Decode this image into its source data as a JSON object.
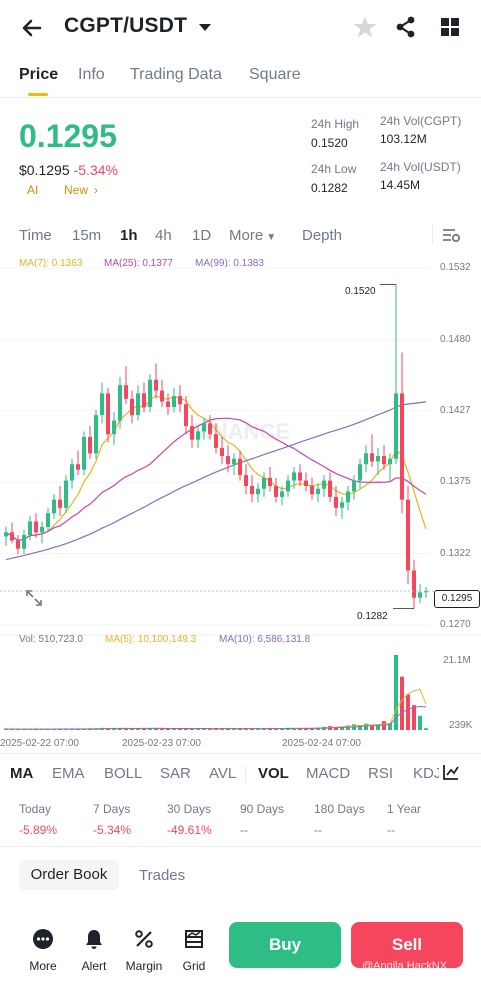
{
  "header": {
    "pair": "CGPT/USDT"
  },
  "tabs": [
    "Price",
    "Info",
    "Trading Data",
    "Square"
  ],
  "ticker": {
    "price": "0.1295",
    "usd_price": "$0.1295",
    "change": "-5.34%",
    "ai": "AI",
    "new": "New",
    "high_label": "24h High",
    "high": "0.1520",
    "low_label": "24h Low",
    "low": "0.1282",
    "vol_base_label": "24h Vol(CGPT)",
    "vol_base": "103.12M",
    "vol_quote_label": "24h Vol(USDT)",
    "vol_quote": "14.45M"
  },
  "timeframes": [
    "Time",
    "15m",
    "1h",
    "4h",
    "1D",
    "More",
    "Depth"
  ],
  "active_timeframe": "1h",
  "ma_legend": {
    "ma7": "MA(7): 0.1363",
    "ma25": "MA(25): 0.1377",
    "ma99": "MA(99): 0.1383"
  },
  "vol_legend": {
    "vol": "Vol: 510,723.0",
    "ma5": "MA(5): 10,100,149.3",
    "ma10": "MA(10): 6,586,131.8"
  },
  "watermark": "BINANCE",
  "colors": {
    "up": "#2ebd85",
    "down": "#f6465d",
    "ma7": "#e6b422",
    "ma25": "#c047b0",
    "ma99": "#8a6cc9",
    "accent": "#f0b90b"
  },
  "chart_data": {
    "type": "candlestick",
    "y_ticks": [
      "0.1532",
      "0.1480",
      "0.1427",
      "0.1375",
      "0.1322",
      "0.1270"
    ],
    "ylim": [
      0.127,
      0.1532
    ],
    "x_labels": [
      "2025-02-22 07:00",
      "2025-02-23 07:00",
      "2025-02-24 07:00"
    ],
    "max_marker": "0.1520",
    "min_marker": "0.1282",
    "last_price": "0.1295",
    "vol_ticks": [
      "21.1M",
      "239K"
    ],
    "candles": [
      [
        0.1335,
        0.1342,
        0.1328,
        0.1338
      ],
      [
        0.1338,
        0.1345,
        0.133,
        0.1332
      ],
      [
        0.1332,
        0.1336,
        0.1322,
        0.1326
      ],
      [
        0.1326,
        0.134,
        0.1322,
        0.1336
      ],
      [
        0.1336,
        0.135,
        0.1332,
        0.1346
      ],
      [
        0.1346,
        0.1352,
        0.1334,
        0.1338
      ],
      [
        0.1338,
        0.1346,
        0.133,
        0.1342
      ],
      [
        0.1342,
        0.1356,
        0.1338,
        0.1352
      ],
      [
        0.1352,
        0.1366,
        0.1348,
        0.1362
      ],
      [
        0.1362,
        0.1372,
        0.135,
        0.1356
      ],
      [
        0.1356,
        0.138,
        0.1352,
        0.1376
      ],
      [
        0.1376,
        0.1392,
        0.137,
        0.1388
      ],
      [
        0.1388,
        0.1398,
        0.138,
        0.1384
      ],
      [
        0.1384,
        0.1412,
        0.138,
        0.1408
      ],
      [
        0.1408,
        0.1416,
        0.1392,
        0.1396
      ],
      [
        0.1396,
        0.1428,
        0.1392,
        0.1424
      ],
      [
        0.1424,
        0.1448,
        0.1418,
        0.144
      ],
      [
        0.144,
        0.1444,
        0.1404,
        0.141
      ],
      [
        0.141,
        0.1426,
        0.1402,
        0.142
      ],
      [
        0.142,
        0.1452,
        0.1414,
        0.1446
      ],
      [
        0.1446,
        0.146,
        0.1432,
        0.1436
      ],
      [
        0.1436,
        0.1442,
        0.1418,
        0.1424
      ],
      [
        0.1424,
        0.1446,
        0.142,
        0.144
      ],
      [
        0.144,
        0.1448,
        0.1426,
        0.143
      ],
      [
        0.143,
        0.1454,
        0.1426,
        0.145
      ],
      [
        0.145,
        0.1462,
        0.1436,
        0.1442
      ],
      [
        0.1442,
        0.145,
        0.143,
        0.1434
      ],
      [
        0.1434,
        0.144,
        0.1424,
        0.143
      ],
      [
        0.143,
        0.1444,
        0.1426,
        0.1438
      ],
      [
        0.1438,
        0.1446,
        0.1426,
        0.1432
      ],
      [
        0.1432,
        0.1438,
        0.141,
        0.1416
      ],
      [
        0.1416,
        0.1424,
        0.14,
        0.1406
      ],
      [
        0.1406,
        0.1416,
        0.14,
        0.1412
      ],
      [
        0.1412,
        0.1422,
        0.1406,
        0.1418
      ],
      [
        0.1418,
        0.1424,
        0.1406,
        0.141
      ],
      [
        0.141,
        0.1418,
        0.1396,
        0.14
      ],
      [
        0.14,
        0.1408,
        0.1388,
        0.1394
      ],
      [
        0.1394,
        0.1402,
        0.1382,
        0.1388
      ],
      [
        0.1388,
        0.1396,
        0.138,
        0.1392
      ],
      [
        0.1392,
        0.1398,
        0.1376,
        0.138
      ],
      [
        0.138,
        0.1388,
        0.1366,
        0.1372
      ],
      [
        0.1372,
        0.138,
        0.136,
        0.1366
      ],
      [
        0.1366,
        0.1374,
        0.136,
        0.137
      ],
      [
        0.137,
        0.1382,
        0.1364,
        0.1378
      ],
      [
        0.1378,
        0.1386,
        0.1368,
        0.1372
      ],
      [
        0.1372,
        0.1378,
        0.136,
        0.1364
      ],
      [
        0.1364,
        0.1372,
        0.1358,
        0.1368
      ],
      [
        0.1368,
        0.138,
        0.1364,
        0.1376
      ],
      [
        0.1376,
        0.1386,
        0.137,
        0.1382
      ],
      [
        0.1382,
        0.1388,
        0.1372,
        0.1376
      ],
      [
        0.1376,
        0.1382,
        0.1368,
        0.1372
      ],
      [
        0.1372,
        0.1378,
        0.1362,
        0.1366
      ],
      [
        0.1366,
        0.1374,
        0.136,
        0.137
      ],
      [
        0.137,
        0.138,
        0.1364,
        0.1376
      ],
      [
        0.1376,
        0.1382,
        0.136,
        0.1364
      ],
      [
        0.1364,
        0.1372,
        0.135,
        0.1356
      ],
      [
        0.1356,
        0.1364,
        0.1348,
        0.136
      ],
      [
        0.136,
        0.1372,
        0.1354,
        0.1368
      ],
      [
        0.1368,
        0.138,
        0.1362,
        0.1376
      ],
      [
        0.1376,
        0.1392,
        0.137,
        0.1388
      ],
      [
        0.1388,
        0.1402,
        0.1382,
        0.1396
      ],
      [
        0.1396,
        0.141,
        0.1386,
        0.139
      ],
      [
        0.139,
        0.14,
        0.138,
        0.1394
      ],
      [
        0.1394,
        0.1402,
        0.1384,
        0.1388
      ],
      [
        0.1388,
        0.1396,
        0.1376,
        0.1392
      ],
      [
        0.1392,
        0.152,
        0.1388,
        0.144
      ],
      [
        0.144,
        0.147,
        0.1352,
        0.1362
      ],
      [
        0.1362,
        0.1372,
        0.13,
        0.131
      ],
      [
        0.131,
        0.1318,
        0.1282,
        0.129
      ],
      [
        0.129,
        0.13,
        0.1286,
        0.1294
      ],
      [
        0.1294,
        0.1298,
        0.129,
        0.1295
      ]
    ],
    "volumes": [
      0.3,
      0.2,
      0.25,
      0.3,
      0.2,
      0.22,
      0.3,
      0.25,
      0.35,
      0.3,
      0.28,
      0.4,
      0.3,
      0.32,
      0.4,
      0.35,
      0.6,
      0.5,
      0.4,
      0.45,
      0.5,
      0.4,
      0.45,
      0.35,
      0.55,
      0.5,
      0.4,
      0.35,
      0.4,
      0.35,
      0.45,
      0.4,
      0.3,
      0.35,
      0.4,
      0.45,
      0.4,
      0.35,
      0.3,
      0.4,
      0.45,
      0.4,
      0.35,
      0.5,
      0.45,
      0.4,
      0.35,
      0.6,
      0.5,
      0.4,
      0.45,
      0.5,
      0.7,
      0.9,
      1.1,
      0.8,
      1.0,
      1.3,
      1.6,
      1.4,
      1.8,
      1.2,
      1.6,
      2.5,
      2.0,
      21.1,
      15.0,
      10.0,
      7.0,
      4.0,
      0.5
    ]
  },
  "indicators": [
    "MA",
    "EMA",
    "BOLL",
    "SAR",
    "AVL",
    "VOL",
    "MACD",
    "RSI",
    "KDJ"
  ],
  "performance": [
    {
      "label": "Today",
      "value": "-5.89%"
    },
    {
      "label": "7 Days",
      "value": "-5.34%"
    },
    {
      "label": "30 Days",
      "value": "-49.61%"
    },
    {
      "label": "90 Days",
      "value": "--"
    },
    {
      "label": "180 Days",
      "value": "--"
    },
    {
      "label": "1 Year",
      "value": "--"
    }
  ],
  "bottom_tabs": {
    "order_book": "Order Book",
    "trades": "Trades"
  },
  "actions": {
    "more": "More",
    "alert": "Alert",
    "margin": "Margin",
    "grid": "Grid",
    "buy": "Buy",
    "sell": "Sell"
  },
  "credit": "@Angila HackNX"
}
